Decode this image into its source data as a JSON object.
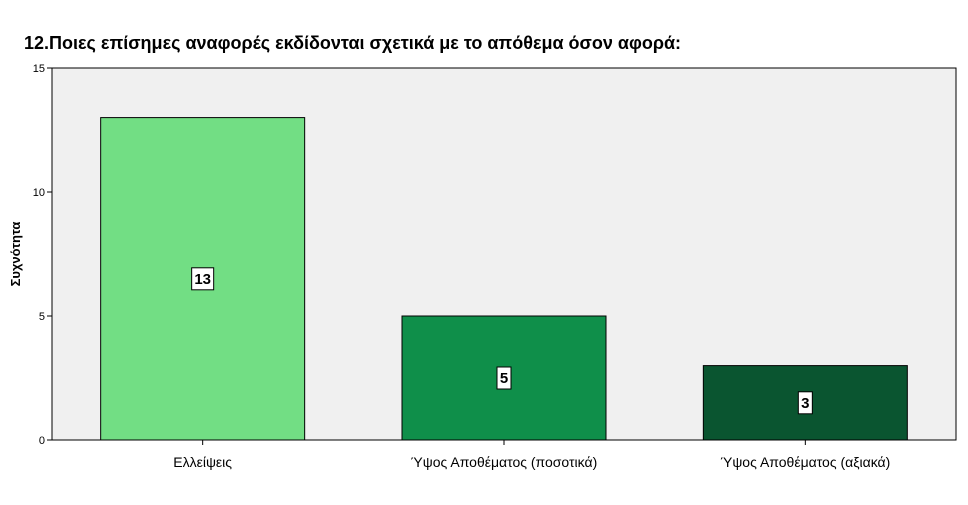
{
  "chart_data": {
    "type": "bar",
    "title": "12.Ποιες επίσημες αναφορές εκδίδονται σχετικά με το απόθεμα όσον αφορά:",
    "xlabel": "",
    "ylabel": "Συχνότητα",
    "categories": [
      "Ελλείψεις",
      "Ύψος Αποθέματος (ποσοτικά)",
      "Ύψος Αποθέματος (αξιακά)"
    ],
    "values": [
      13,
      5,
      3
    ],
    "data_labels": [
      "13",
      "5",
      "3"
    ],
    "colors": [
      "#72de84",
      "#0f8f4a",
      "#0a5530"
    ],
    "ylim": [
      0,
      15
    ],
    "yticks": [
      0,
      5,
      10,
      15
    ],
    "ytick_labels": [
      "0",
      "5",
      "10",
      "15"
    ],
    "grid": false,
    "plot_background": "#f0f0f0"
  }
}
